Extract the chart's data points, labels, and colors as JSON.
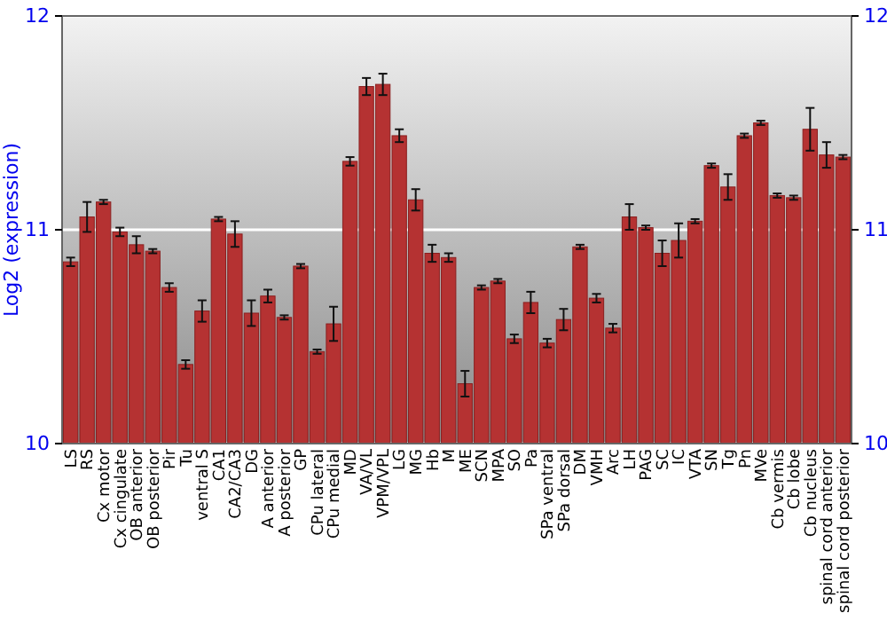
{
  "chart_data": {
    "type": "bar",
    "ylabel": "Log2 (expression)",
    "categories": [
      "LS",
      "RS",
      "Cx motor",
      "Cx cingulate",
      "OB anterior",
      "OB posterior",
      "Pir",
      "Tu",
      "ventral S",
      "CA1",
      "CA2/CA3",
      "DG",
      "A anterior",
      "A posterior",
      "GP",
      "CPu lateral",
      "CPu medial",
      "MD",
      "VA/VL",
      "VPM/VPL",
      "LG",
      "MG",
      "Hb",
      "M",
      "ME",
      "SCN",
      "MPA",
      "SO",
      "Pa",
      "SPa ventral",
      "SPa dorsal",
      "DM",
      "VMH",
      "Arc",
      "LH",
      "PAG",
      "SC",
      "IC",
      "VTA",
      "SN",
      "Tg",
      "Pn",
      "MVe",
      "Cb vermis",
      "Cb lobe",
      "Cb nucleus",
      "spinal cord anterior",
      "spinal cord posterior"
    ],
    "values": [
      10.85,
      11.06,
      11.13,
      10.99,
      10.93,
      10.9,
      10.73,
      10.37,
      10.62,
      11.05,
      10.98,
      10.61,
      10.69,
      10.59,
      10.83,
      10.43,
      10.56,
      11.32,
      11.67,
      11.68,
      11.44,
      11.14,
      10.89,
      10.87,
      10.28,
      10.73,
      10.76,
      10.49,
      10.66,
      10.47,
      10.58,
      10.92,
      10.68,
      10.54,
      11.06,
      11.01,
      10.89,
      10.95,
      11.04,
      11.3,
      11.2,
      11.44,
      11.5,
      11.16,
      11.15,
      11.47,
      11.35,
      11.34
    ],
    "errors": [
      0.02,
      0.07,
      0.01,
      0.02,
      0.04,
      0.01,
      0.02,
      0.02,
      0.05,
      0.01,
      0.06,
      0.06,
      0.03,
      0.01,
      0.01,
      0.01,
      0.08,
      0.02,
      0.04,
      0.05,
      0.03,
      0.05,
      0.04,
      0.02,
      0.06,
      0.01,
      0.01,
      0.02,
      0.05,
      0.02,
      0.05,
      0.01,
      0.02,
      0.02,
      0.06,
      0.01,
      0.06,
      0.08,
      0.01,
      0.01,
      0.06,
      0.01,
      0.01,
      0.01,
      0.01,
      0.1,
      0.06,
      0.01
    ],
    "color": "#b53232",
    "ylim": [
      10,
      12
    ],
    "yticks": [
      10,
      11,
      12
    ],
    "y2lim": [
      10,
      12
    ],
    "y2ticks": [
      10,
      11,
      12
    ],
    "grid": "y"
  }
}
